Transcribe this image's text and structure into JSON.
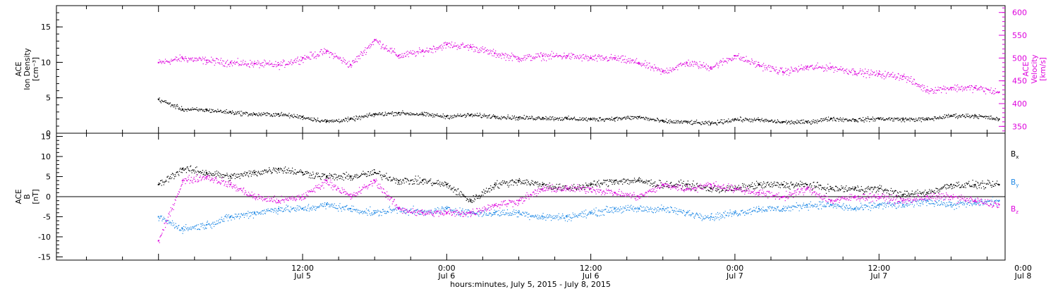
{
  "chart_data": [
    {
      "type": "scatter",
      "panel": "density-velocity",
      "ylabel": [
        "ACE",
        "Ion Density",
        "[cm⁻³]"
      ],
      "ylim": [
        0,
        18
      ],
      "yticks": [
        "0",
        "5",
        "10",
        "15"
      ],
      "ytick_values": [
        0,
        5,
        10,
        15
      ],
      "y2label": [
        "ACE",
        "Velocity",
        "[km/s]"
      ],
      "y2lim": [
        335,
        615
      ],
      "y2ticks": [
        "350",
        "400",
        "450",
        "500",
        "550",
        "600"
      ],
      "y2tick_values": [
        350,
        400,
        450,
        500,
        550,
        600
      ],
      "series": [
        {
          "axis": "left",
          "color": "#000000",
          "hours": [
            0,
            2,
            4,
            6,
            8,
            10,
            12,
            14,
            16,
            18,
            20,
            22,
            24,
            26,
            28,
            30,
            32,
            34,
            36,
            38,
            40,
            42,
            44,
            46,
            48,
            50,
            52,
            54,
            56,
            58,
            60,
            62,
            64,
            66,
            68,
            70
          ],
          "values": [
            4.8,
            3.4,
            3.3,
            3.0,
            2.7,
            2.7,
            2.3,
            1.7,
            2.0,
            2.7,
            2.9,
            2.7,
            2.4,
            2.6,
            2.4,
            2.2,
            2.2,
            2.1,
            2.0,
            2.1,
            2.3,
            1.7,
            1.6,
            1.4,
            2.0,
            1.9,
            1.6,
            1.6,
            2.1,
            1.9,
            2.1,
            2.0,
            2.0,
            2.5,
            2.5,
            2.0
          ]
        },
        {
          "axis": "right",
          "color": "#dd00dd",
          "hours": [
            0,
            2,
            4,
            6,
            8,
            10,
            12,
            14,
            16,
            18,
            20,
            22,
            24,
            26,
            28,
            30,
            32,
            34,
            36,
            38,
            40,
            42,
            44,
            46,
            48,
            50,
            52,
            54,
            56,
            58,
            60,
            62,
            64,
            66,
            68,
            70
          ],
          "values": [
            490,
            500,
            495,
            490,
            488,
            485,
            500,
            515,
            485,
            540,
            505,
            515,
            530,
            525,
            510,
            500,
            505,
            505,
            500,
            500,
            490,
            470,
            490,
            480,
            505,
            485,
            470,
            480,
            480,
            470,
            465,
            460,
            430,
            435,
            435,
            425
          ]
        }
      ]
    },
    {
      "type": "scatter",
      "panel": "magnetic-field",
      "ylabel": [
        "ACE",
        "B",
        "[nT]"
      ],
      "ylim": [
        -15.8,
        15.8
      ],
      "yticks": [
        "-15",
        "-10",
        "-5",
        "0",
        "5",
        "10",
        "15"
      ],
      "ytick_values": [
        -15,
        -10,
        -5,
        0,
        5,
        10,
        15
      ],
      "zero_line": true,
      "series": [
        {
          "name": "B",
          "subscript": "x",
          "color": "#000000",
          "hours": [
            0,
            2,
            4,
            6,
            8,
            10,
            12,
            14,
            16,
            18,
            20,
            22,
            24,
            26,
            28,
            30,
            32,
            34,
            36,
            38,
            40,
            42,
            44,
            46,
            48,
            50,
            52,
            54,
            56,
            58,
            60,
            62,
            64,
            66,
            68,
            70
          ],
          "values": [
            3,
            7,
            6,
            5,
            6,
            7,
            6,
            5,
            5,
            6,
            4,
            4,
            3,
            -1,
            3,
            4,
            3,
            2,
            3,
            4,
            4,
            3,
            3,
            2,
            2,
            3,
            3,
            3,
            2,
            2,
            2,
            0.5,
            1,
            3,
            3,
            3
          ]
        },
        {
          "name": "B",
          "subscript": "y",
          "color": "#1e88e5",
          "hours": [
            0,
            2,
            4,
            6,
            8,
            10,
            12,
            14,
            16,
            18,
            20,
            22,
            24,
            26,
            28,
            30,
            32,
            34,
            36,
            38,
            40,
            42,
            44,
            46,
            48,
            50,
            52,
            54,
            56,
            58,
            60,
            62,
            64,
            66,
            68,
            70
          ],
          "values": [
            -5,
            -8,
            -7,
            -5,
            -4,
            -3,
            -3,
            -2,
            -3,
            -4,
            -3,
            -4,
            -3,
            -4,
            -4,
            -4,
            -5,
            -5,
            -4,
            -3,
            -3,
            -3,
            -4,
            -5,
            -4,
            -3,
            -3,
            -2,
            -2,
            -3,
            -2,
            -2,
            -1,
            -2,
            -1.5,
            -1
          ]
        },
        {
          "name": "B",
          "subscript": "z",
          "color": "#dd00dd",
          "hours": [
            0,
            2,
            4,
            6,
            8,
            10,
            12,
            14,
            16,
            18,
            20,
            22,
            24,
            26,
            28,
            30,
            32,
            34,
            36,
            38,
            40,
            42,
            44,
            46,
            48,
            50,
            52,
            54,
            56,
            58,
            60,
            62,
            64,
            66,
            68,
            70
          ],
          "values": [
            -11,
            4,
            5,
            3,
            0,
            -1,
            0,
            4,
            0,
            4,
            -3,
            -4,
            -4,
            -4,
            -2,
            -1,
            2,
            2,
            2,
            1,
            0,
            3,
            2,
            3,
            2,
            1,
            0,
            2,
            -1,
            0,
            0,
            -1,
            0,
            0,
            -1,
            -2
          ]
        }
      ]
    }
  ],
  "time_axis": {
    "range_hours": [
      -8.5,
      70.5
    ],
    "tick_hours": [
      0,
      12,
      24,
      36,
      48,
      60,
      72
    ],
    "tick_time_labels": [
      "12:00",
      "0:00",
      "12:00",
      "0:00",
      "12:00",
      "0:00"
    ],
    "tick_date_labels": [
      "Jul 5",
      "Jul 6",
      "Jul 6",
      "Jul 7",
      "Jul 7",
      "Jul 8"
    ],
    "tick_label_hours": [
      12,
      24,
      36,
      48,
      60,
      72
    ],
    "caption": "hours:minutes, July  5, 2015 - July  8, 2015"
  }
}
